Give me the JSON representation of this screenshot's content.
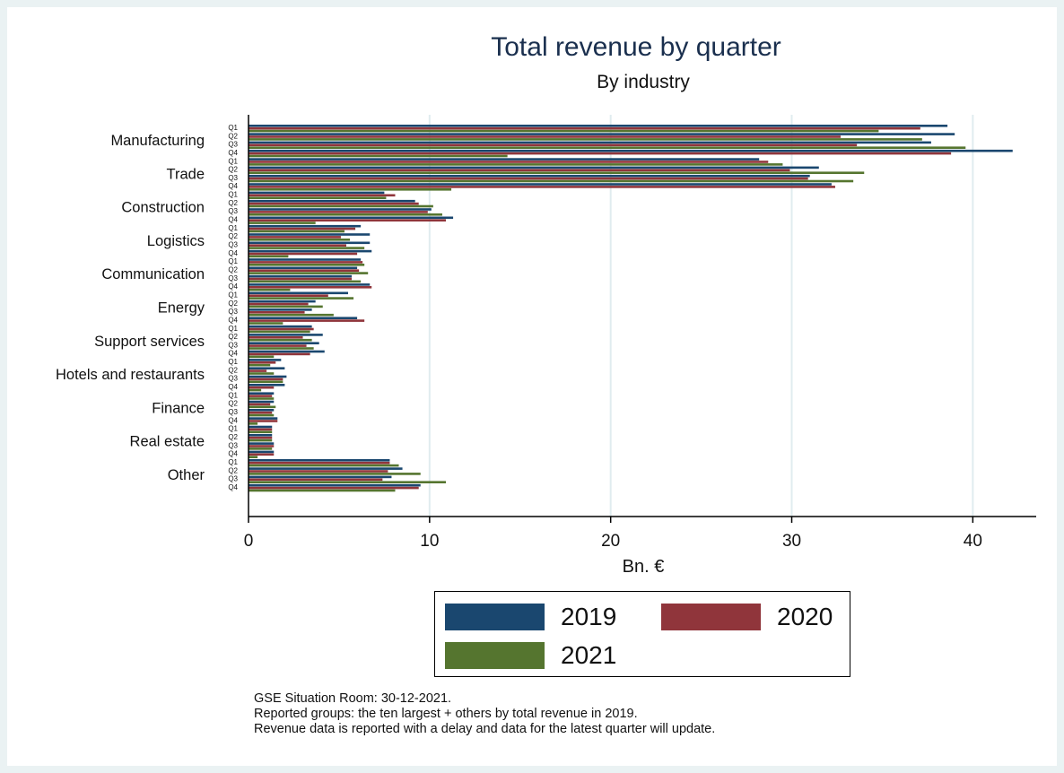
{
  "chart_data": {
    "type": "bar",
    "orientation": "horizontal",
    "title": "Total revenue by quarter",
    "subtitle": "By industry",
    "xlabel": "Bn. €",
    "ylabel": "",
    "xlim": [
      0,
      43.5
    ],
    "xticks": [
      0,
      10,
      20,
      30,
      40
    ],
    "xtick_labels": [
      "0",
      "10",
      "20",
      "30",
      "40"
    ],
    "grid": "vertical",
    "legend_placement": "bottom",
    "quarters": [
      "Q1",
      "Q2",
      "Q3",
      "Q4"
    ],
    "categories": [
      "Manufacturing",
      "Trade",
      "Construction",
      "Logistics",
      "Communication",
      "Energy",
      "Support services",
      "Hotels and restaurants",
      "Finance",
      "Real estate",
      "Other"
    ],
    "series": [
      {
        "name": "2019",
        "color": "#1a476f",
        "values": [
          [
            38.6,
            39.0,
            37.7,
            42.2
          ],
          [
            28.2,
            31.5,
            31.0,
            32.2
          ],
          [
            7.5,
            9.2,
            10.1,
            11.3
          ],
          [
            6.2,
            6.7,
            6.7,
            6.8
          ],
          [
            6.2,
            6.0,
            5.7,
            6.7
          ],
          [
            5.5,
            3.7,
            3.5,
            6.0
          ],
          [
            3.5,
            4.1,
            3.9,
            4.2
          ],
          [
            1.8,
            2.0,
            2.1,
            2.0
          ],
          [
            1.4,
            1.4,
            1.4,
            1.6
          ],
          [
            1.3,
            1.3,
            1.4,
            1.4
          ],
          [
            7.8,
            8.5,
            7.9,
            9.5
          ]
        ]
      },
      {
        "name": "2020",
        "color": "#90353b",
        "values": [
          [
            37.1,
            32.7,
            33.6,
            38.8
          ],
          [
            28.7,
            29.9,
            30.9,
            32.4
          ],
          [
            8.1,
            9.4,
            9.9,
            10.9
          ],
          [
            5.9,
            5.1,
            5.4,
            6.0
          ],
          [
            6.3,
            6.1,
            5.7,
            6.8
          ],
          [
            4.4,
            3.3,
            3.1,
            6.4
          ],
          [
            3.6,
            3.0,
            3.2,
            3.4
          ],
          [
            1.5,
            1.0,
            1.9,
            1.4
          ],
          [
            1.3,
            1.2,
            1.3,
            1.6
          ],
          [
            1.3,
            1.3,
            1.4,
            1.4
          ],
          [
            7.8,
            7.7,
            7.4,
            9.4
          ]
        ]
      },
      {
        "name": "2021",
        "color": "#55752f",
        "values": [
          [
            34.8,
            37.2,
            39.6,
            14.3
          ],
          [
            29.5,
            34.0,
            33.4,
            11.2
          ],
          [
            7.6,
            10.2,
            10.7,
            3.7
          ],
          [
            5.3,
            5.6,
            6.4,
            2.2
          ],
          [
            6.4,
            6.6,
            6.2,
            2.3
          ],
          [
            5.8,
            4.1,
            4.7,
            1.9
          ],
          [
            3.4,
            3.5,
            3.6,
            1.4
          ],
          [
            1.2,
            1.4,
            1.9,
            0.7
          ],
          [
            1.4,
            1.5,
            1.4,
            0.5
          ],
          [
            1.3,
            1.3,
            1.3,
            0.5
          ],
          [
            8.3,
            9.5,
            10.9,
            8.1
          ]
        ]
      }
    ]
  },
  "notes": [
    "GSE Situation Room: 30-12-2021.",
    "Reported groups: the ten largest + others by total revenue in 2019.",
    "Revenue data is reported with a delay and data for the latest quarter will update."
  ]
}
